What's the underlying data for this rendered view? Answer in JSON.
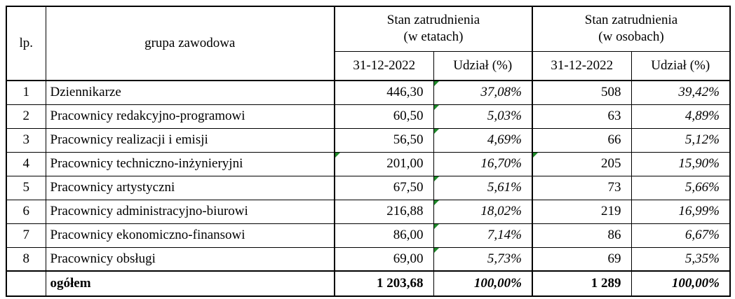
{
  "table": {
    "header": {
      "lp": "lp.",
      "group": "grupa zawodowa",
      "column_groups": [
        [
          "Stan zatrudnienia",
          "(w etatach)"
        ],
        [
          "Stan zatrudnienia",
          "(w osobach)"
        ]
      ],
      "subheaders": [
        "31-12-2022",
        "Udział (%)",
        "31-12-2022",
        "Udział (%)"
      ]
    },
    "rows": [
      [
        "1",
        "Dziennikarze",
        "446,30",
        "37,08%",
        "508",
        "39,42%"
      ],
      [
        "2",
        "Pracownicy redakcyjno-programowi",
        "60,50",
        "5,03%",
        "63",
        "4,89%"
      ],
      [
        "3",
        "Pracownicy realizacji i emisji",
        "56,50",
        "4,69%",
        "66",
        "5,12%"
      ],
      [
        "4",
        "Pracownicy techniczno-inżynieryjni",
        "201,00",
        "16,70%",
        "205",
        "15,90%"
      ],
      [
        "5",
        "Pracownicy artystyczni",
        "67,50",
        "5,61%",
        "73",
        "5,66%"
      ],
      [
        "6",
        "Pracownicy administracyjno-biurowi",
        "216,88",
        "18,02%",
        "219",
        "16,99%"
      ],
      [
        "7",
        "Pracownicy ekonomiczno-finansowi",
        "86,00",
        "7,14%",
        "86",
        "6,67%"
      ],
      [
        "8",
        "Pracownicy obsługi",
        "69,00",
        "5,73%",
        "69",
        "5,35%"
      ]
    ],
    "total": [
      "ogółem",
      "1 203,68",
      "100,00%",
      "1 289",
      "100,00%"
    ]
  }
}
